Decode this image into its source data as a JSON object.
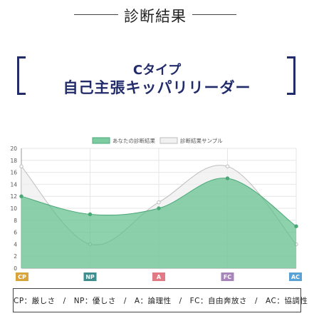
{
  "header": {
    "title": "診断結果"
  },
  "result": {
    "line1": "Cタイプ",
    "line2": "自己主張キッパリリーダー"
  },
  "chart_data": {
    "type": "area",
    "categories": [
      "CP",
      "NP",
      "A",
      "FC",
      "AC"
    ],
    "category_colors": [
      "#d9a43a",
      "#3e8e8e",
      "#e27a85",
      "#a784b9",
      "#5aa2d6"
    ],
    "series": [
      {
        "name": "あなたの診断結果",
        "values": [
          12,
          9,
          10,
          15,
          7
        ],
        "color": "#5cbf8a"
      },
      {
        "name": "診断結果サンプル",
        "values": [
          17,
          4,
          11,
          17,
          4
        ],
        "color": "#cccccc"
      }
    ],
    "ylim": [
      0,
      20
    ],
    "yticks": [
      0,
      2,
      4,
      6,
      8,
      10,
      12,
      14,
      16,
      18,
      20
    ],
    "grid": true,
    "legend": "top"
  },
  "legend_text": "CP：厳しさ　/　NP：優しさ　/　A：論理性　/　FC：自由奔放さ　/　AC：協調性"
}
